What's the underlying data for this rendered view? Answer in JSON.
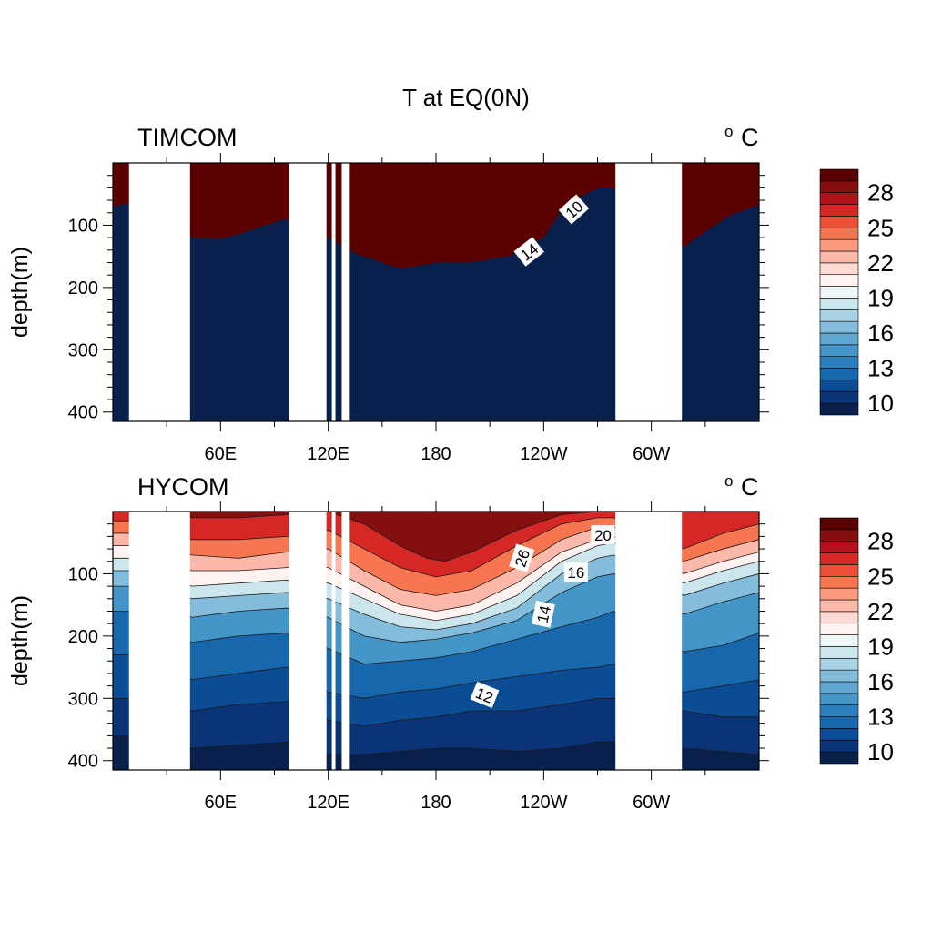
{
  "chart_data": {
    "type": "heatmap",
    "title": "T at EQ(0N)",
    "units": {
      "prefix": "o",
      "letter": "C"
    },
    "ylabel": "depth(m)",
    "xlim": [
      0,
      360
    ],
    "ylim": [
      0,
      415
    ],
    "xticks": [
      {
        "lon": 60,
        "label": "60E"
      },
      {
        "lon": 120,
        "label": "120E"
      },
      {
        "lon": 180,
        "label": "180"
      },
      {
        "lon": 240,
        "label": "120W"
      },
      {
        "lon": 300,
        "label": "60W"
      }
    ],
    "yticks": [
      {
        "depth": 100,
        "label": "100"
      },
      {
        "depth": 200,
        "label": "200"
      },
      {
        "depth": 300,
        "label": "300"
      },
      {
        "depth": 400,
        "label": "400"
      }
    ],
    "land_gaps": [
      [
        9,
        43
      ],
      [
        98,
        119
      ],
      [
        122,
        124
      ],
      [
        127.5,
        132
      ],
      [
        280,
        317
      ]
    ],
    "colorbar": {
      "levels": [
        10,
        11,
        12,
        13,
        14,
        15,
        16,
        17,
        18,
        19,
        20,
        21,
        22,
        23,
        24,
        25,
        26,
        27,
        28,
        29
      ],
      "colors": [
        "#08204b",
        "#0b3478",
        "#0b4c95",
        "#1767ad",
        "#2c7fbe",
        "#4495c8",
        "#5fa8d2",
        "#84bddc",
        "#a9d3e4",
        "#cce6ee",
        "#eef7f8",
        "#fff3f1",
        "#fedad5",
        "#fcb9a9",
        "#fb9a7d",
        "#f7764f",
        "#ec4f33",
        "#d52724",
        "#b2121b",
        "#850e0f",
        "#5a0000"
      ],
      "labels": [
        {
          "value": 10,
          "label": "10"
        },
        {
          "value": 13,
          "label": "13"
        },
        {
          "value": 16,
          "label": "16"
        },
        {
          "value": 19,
          "label": "19"
        },
        {
          "value": 22,
          "label": "22"
        },
        {
          "value": 25,
          "label": "25"
        },
        {
          "value": 28,
          "label": "28"
        }
      ]
    },
    "panels": [
      {
        "name": "TIMCOM",
        "contour_labels": [
          {
            "text": "10",
            "lon": 257,
            "depth": 75,
            "angle": -42
          },
          {
            "text": "14",
            "lon": 232,
            "depth": 143,
            "angle": -38
          }
        ],
        "surface_layer": {
          "temp": 29.5,
          "lon": [
            0,
            8,
            44,
            60,
            75,
            96,
            120,
            135,
            160,
            180,
            200,
            220,
            240,
            250,
            260,
            270,
            279,
            318,
            330,
            345,
            360
          ],
          "depth": [
            70,
            65,
            120,
            122,
            110,
            90,
            120,
            145,
            170,
            160,
            160,
            150,
            120,
            75,
            55,
            40,
            40,
            135,
            110,
            82,
            68
          ]
        },
        "deep_temp": 9.5
      },
      {
        "name": "HYCOM",
        "contour_labels": [
          {
            "text": "20",
            "lon": 273,
            "depth": 38,
            "angle": 0
          },
          {
            "text": "26",
            "lon": 228,
            "depth": 75,
            "angle": -72
          },
          {
            "text": "16",
            "lon": 258,
            "depth": 98,
            "angle": 0
          },
          {
            "text": "14",
            "lon": 240,
            "depth": 165,
            "angle": -78
          },
          {
            "text": "12",
            "lon": 207,
            "depth": 295,
            "angle": 22
          }
        ],
        "isotherms": [
          {
            "temp": 28,
            "lon": [
              0,
              10,
              44,
              70,
              97,
              120,
              140,
              160,
              175,
              185,
              200,
              225,
              250,
              270,
              279,
              318,
              340,
              360
            ],
            "depth": [
              0,
              0,
              10,
              10,
              5,
              0,
              20,
              55,
              75,
              80,
              65,
              30,
              5,
              0,
              0,
              0,
              0,
              0
            ]
          },
          {
            "temp": 26,
            "lon": [
              0,
              10,
              44,
              70,
              97,
              120,
              140,
              160,
              180,
              200,
              225,
              250,
              270,
              279,
              318,
              340,
              360
            ],
            "depth": [
              15,
              15,
              45,
              45,
              40,
              30,
              60,
              90,
              105,
              95,
              55,
              20,
              10,
              10,
              60,
              35,
              20
            ]
          },
          {
            "temp": 24,
            "lon": [
              0,
              10,
              44,
              70,
              97,
              120,
              140,
              160,
              180,
              200,
              225,
              250,
              270,
              279,
              318,
              340,
              360
            ],
            "depth": [
              35,
              35,
              70,
              75,
              65,
              60,
              95,
              125,
              135,
              125,
              90,
              45,
              25,
              25,
              80,
              60,
              45
            ]
          },
          {
            "temp": 22,
            "lon": [
              0,
              10,
              44,
              70,
              97,
              120,
              140,
              160,
              180,
              200,
              225,
              250,
              270,
              279,
              318,
              340,
              360
            ],
            "depth": [
              55,
              55,
              95,
              95,
              90,
              90,
              120,
              150,
              160,
              150,
              115,
              65,
              45,
              40,
              100,
              80,
              65
            ]
          },
          {
            "temp": 20,
            "lon": [
              0,
              10,
              44,
              70,
              97,
              120,
              140,
              160,
              180,
              200,
              225,
              250,
              270,
              279,
              318,
              340,
              360
            ],
            "depth": [
              75,
              75,
              120,
              115,
              110,
              115,
              140,
              165,
              175,
              165,
              135,
              80,
              55,
              50,
              115,
              95,
              80
            ]
          },
          {
            "temp": 18,
            "lon": [
              0,
              10,
              44,
              70,
              97,
              120,
              140,
              160,
              180,
              200,
              225,
              250,
              270,
              279,
              318,
              340,
              360
            ],
            "depth": [
              95,
              95,
              140,
              135,
              130,
              140,
              165,
              185,
              190,
              180,
              155,
              100,
              75,
              70,
              135,
              115,
              100
            ]
          },
          {
            "temp": 16,
            "lon": [
              0,
              10,
              44,
              70,
              97,
              120,
              140,
              160,
              180,
              200,
              225,
              250,
              270,
              279,
              318,
              340,
              360
            ],
            "depth": [
              120,
              120,
              170,
              160,
              155,
              170,
              200,
              210,
              205,
              195,
              175,
              130,
              105,
              100,
              165,
              145,
              130
            ]
          },
          {
            "temp": 14,
            "lon": [
              0,
              10,
              44,
              70,
              97,
              120,
              140,
              160,
              180,
              200,
              225,
              250,
              270,
              279,
              318,
              340,
              360
            ],
            "depth": [
              160,
              160,
              210,
              200,
              195,
              220,
              245,
              240,
              235,
              225,
              205,
              185,
              170,
              160,
              225,
              215,
              195
            ]
          },
          {
            "temp": 12,
            "lon": [
              0,
              10,
              44,
              70,
              97,
              120,
              140,
              160,
              180,
              200,
              225,
              250,
              270,
              279,
              318,
              340,
              360
            ],
            "depth": [
              230,
              230,
              270,
              260,
              250,
              290,
              300,
              290,
              285,
              275,
              265,
              255,
              250,
              245,
              290,
              280,
              270
            ]
          },
          {
            "temp": 11,
            "lon": [
              0,
              10,
              44,
              70,
              97,
              120,
              140,
              160,
              180,
              200,
              225,
              250,
              270,
              279,
              318,
              340,
              360
            ],
            "depth": [
              300,
              300,
              320,
              310,
              305,
              335,
              345,
              335,
              330,
              320,
              320,
              310,
              300,
              300,
              320,
              330,
              330
            ]
          },
          {
            "temp": 10,
            "lon": [
              0,
              10,
              44,
              70,
              97,
              120,
              140,
              160,
              180,
              200,
              225,
              250,
              270,
              279,
              318,
              340,
              360
            ],
            "depth": [
              360,
              360,
              380,
              375,
              370,
              390,
              390,
              385,
              380,
              380,
              385,
              380,
              370,
              370,
              380,
              385,
              390
            ]
          }
        ],
        "deep_temp": 9.5
      }
    ]
  }
}
